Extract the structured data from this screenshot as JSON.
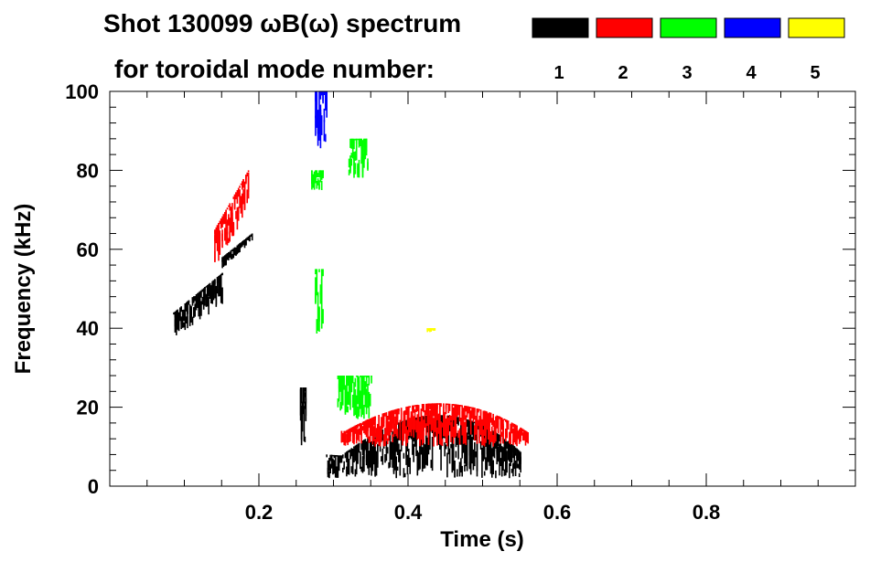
{
  "chart_data": {
    "type": "heatmap",
    "title_line1": "Shot 130099 ωB(ω) spectrum",
    "title_line2": "for toroidal mode number:",
    "xlabel": "Time (s)",
    "ylabel": "Frequency (kHz)",
    "xlim": [
      0.0,
      1.0
    ],
    "ylim": [
      0,
      100
    ],
    "x_ticks": [
      "0.2",
      "0.4",
      "0.6",
      "0.8"
    ],
    "x_tick_values": [
      0.2,
      0.4,
      0.6,
      0.8
    ],
    "y_ticks": [
      "0",
      "20",
      "40",
      "60",
      "80",
      "100"
    ],
    "y_tick_values": [
      0,
      20,
      40,
      60,
      80,
      100
    ],
    "legend": [
      {
        "label": "1",
        "color": "#000000"
      },
      {
        "label": "2",
        "color": "#ff0000"
      },
      {
        "label": "3",
        "color": "#00ff00"
      },
      {
        "label": "4",
        "color": "#0000ff"
      },
      {
        "label": "5",
        "color": "#ffff00"
      }
    ],
    "series": [
      {
        "mode": "1",
        "color": "#000000",
        "regions": [
          {
            "t": [
              0.085,
              0.15
            ],
            "f_start": [
              37,
              44
            ],
            "f_end": [
              46,
              54
            ]
          },
          {
            "t": [
              0.15,
              0.19
            ],
            "f_start": [
              55,
              58
            ],
            "f_end": [
              62,
              64
            ]
          },
          {
            "t": [
              0.255,
              0.262
            ],
            "f_start": [
              10,
              25
            ],
            "f_end": [
              10,
              25
            ]
          },
          {
            "t": [
              0.29,
              0.55
            ],
            "f_start": [
              2,
              8
            ],
            "f_end": [
              2,
              5
            ],
            "peak": [
              0.44,
              18
            ]
          }
        ]
      },
      {
        "mode": "2",
        "color": "#ff0000",
        "regions": [
          {
            "t": [
              0.14,
              0.185
            ],
            "f_start": [
              55,
              65
            ],
            "f_end": [
              70,
              80
            ]
          },
          {
            "t": [
              0.31,
              0.56
            ],
            "f_start": [
              10,
              14
            ],
            "f_end": [
              10,
              13
            ],
            "peak": [
              0.44,
              21
            ]
          }
        ]
      },
      {
        "mode": "3",
        "color": "#00ff00",
        "regions": [
          {
            "t": [
              0.27,
              0.285
            ],
            "f_start": [
              75,
              80
            ],
            "f_end": [
              75,
              80
            ]
          },
          {
            "t": [
              0.32,
              0.345
            ],
            "f_start": [
              78,
              88
            ],
            "f_end": [
              78,
              88
            ]
          },
          {
            "t": [
              0.275,
              0.285
            ],
            "f_start": [
              38,
              55
            ],
            "f_end": [
              38,
              55
            ]
          },
          {
            "t": [
              0.305,
              0.35
            ],
            "f_start": [
              17,
              28
            ],
            "f_end": [
              17,
              28
            ]
          }
        ]
      },
      {
        "mode": "4",
        "color": "#0000ff",
        "regions": [
          {
            "t": [
              0.275,
              0.29
            ],
            "f_start": [
              85,
              100
            ],
            "f_end": [
              85,
              100
            ]
          }
        ]
      },
      {
        "mode": "5",
        "color": "#ffff00",
        "regions": [
          {
            "t": [
              0.425,
              0.435
            ],
            "f_start": [
              39,
              40
            ],
            "f_end": [
              39,
              40
            ]
          }
        ]
      }
    ]
  }
}
